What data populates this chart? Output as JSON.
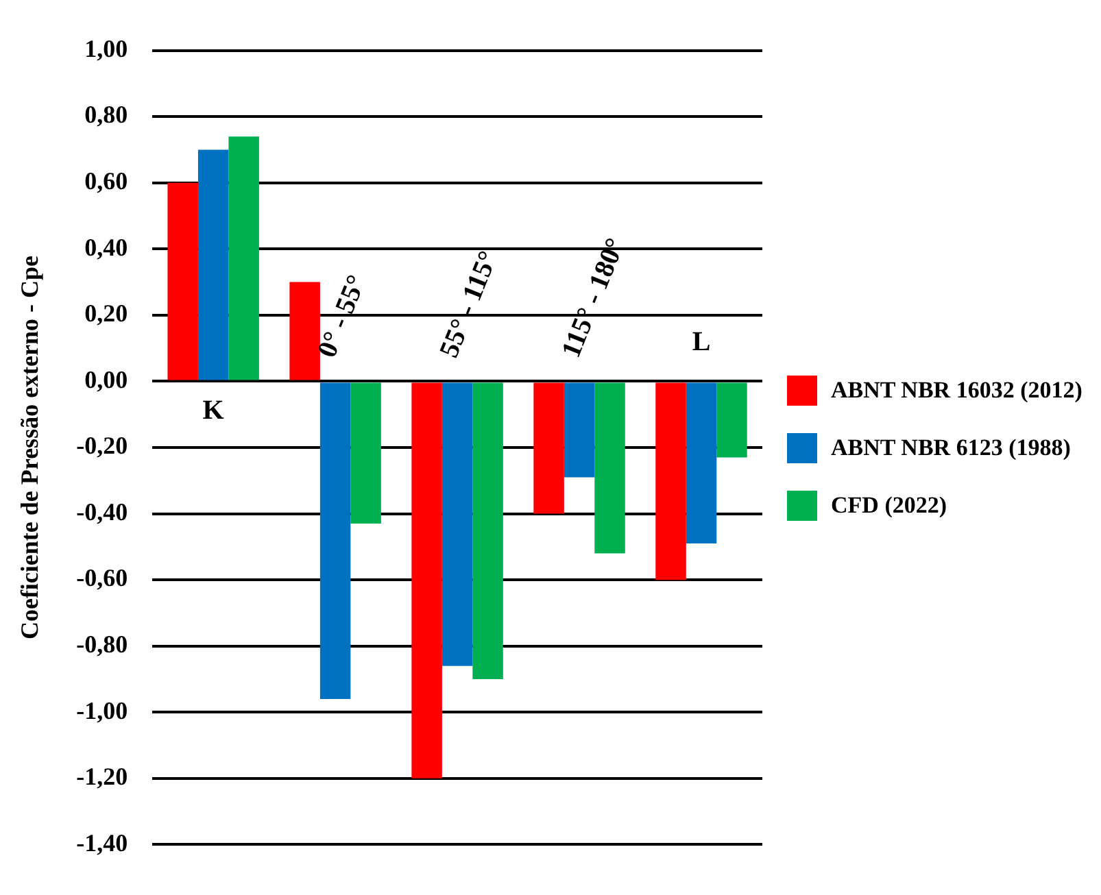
{
  "chart_data": {
    "type": "bar",
    "ylabel": "Coeficiente de Pressão externo - Cpe",
    "categories": [
      "K",
      "0° - 55°",
      "55° - 115°",
      "115° - 180°",
      "L"
    ],
    "series": [
      {
        "name": "ABNT NBR 16032 (2012)",
        "color": "#ff0000",
        "values": [
          0.6,
          0.3,
          -1.2,
          -0.4,
          -0.6
        ]
      },
      {
        "name": "ABNT NBR 6123 (1988)",
        "color": "#0070c0",
        "values": [
          0.7,
          -0.96,
          -0.86,
          -0.29,
          -0.49
        ]
      },
      {
        "name": "CFD (2022)",
        "color": "#00b050",
        "values": [
          0.74,
          -0.43,
          -0.9,
          -0.52,
          -0.23
        ]
      }
    ],
    "ylim": [
      -1.4,
      1.0
    ],
    "yticks": [
      {
        "value": 1.0,
        "label": "1,00"
      },
      {
        "value": 0.8,
        "label": "0,80"
      },
      {
        "value": 0.6,
        "label": "0,60"
      },
      {
        "value": 0.4,
        "label": "0,40"
      },
      {
        "value": 0.2,
        "label": "0,20"
      },
      {
        "value": 0,
        "label": "0,00"
      },
      {
        "value": -0.2,
        "label": "-0,20"
      },
      {
        "value": -0.4,
        "label": "-0,40"
      },
      {
        "value": -0.6,
        "label": "-0,60"
      },
      {
        "value": -0.8,
        "label": "-0,80"
      },
      {
        "value": -1.0,
        "label": "-1,00"
      },
      {
        "value": -1.2,
        "label": "-1,20"
      },
      {
        "value": -1.4,
        "label": "-1,40"
      }
    ],
    "grid": "y",
    "legend": "right"
  }
}
